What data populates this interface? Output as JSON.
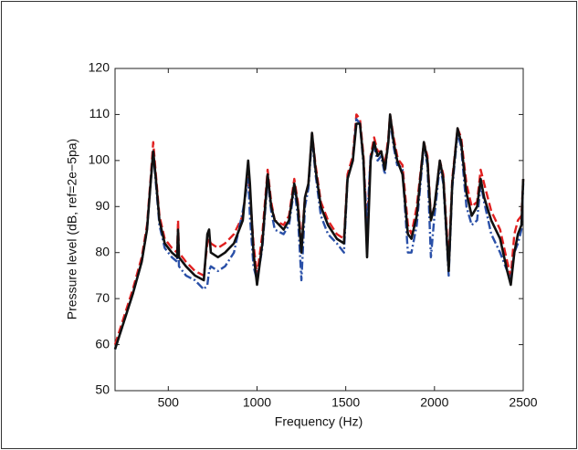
{
  "chart_data": {
    "type": "line",
    "xlabel": "Frequency (Hz)",
    "ylabel": "Pressure level (dB, ref=2e−5pa)",
    "xlim": [
      200,
      2500
    ],
    "xticks": [
      500,
      1000,
      1500,
      2000,
      2500
    ],
    "ylim": [
      50,
      120
    ],
    "yticks": [
      50,
      60,
      70,
      80,
      90,
      100,
      110,
      120
    ],
    "x": [
      200,
      250,
      300,
      350,
      380,
      400,
      415,
      430,
      450,
      480,
      520,
      550,
      555,
      560,
      600,
      650,
      700,
      720,
      730,
      740,
      780,
      820,
      870,
      920,
      950,
      960,
      980,
      1000,
      1030,
      1060,
      1080,
      1100,
      1150,
      1180,
      1210,
      1230,
      1250,
      1270,
      1290,
      1310,
      1330,
      1360,
      1400,
      1450,
      1490,
      1510,
      1540,
      1560,
      1580,
      1600,
      1620,
      1640,
      1660,
      1680,
      1700,
      1720,
      1740,
      1750,
      1770,
      1790,
      1800,
      1820,
      1850,
      1870,
      1900,
      1940,
      1960,
      1980,
      2000,
      2030,
      2050,
      2080,
      2100,
      2130,
      2150,
      2180,
      2210,
      2240,
      2260,
      2280,
      2320,
      2370,
      2410,
      2430,
      2450,
      2470,
      2490,
      2500
    ],
    "series": [
      {
        "color": "#e02020",
        "dash": "dashed",
        "values": [
          60,
          66,
          72,
          79,
          86,
          96,
          104,
          97,
          88,
          83,
          81,
          80,
          87,
          80,
          78,
          76,
          75,
          82,
          83,
          82,
          81,
          82,
          84,
          88,
          98,
          93,
          82,
          75,
          84,
          98,
          91,
          87,
          86,
          88,
          96,
          91,
          82,
          92,
          95,
          106,
          99,
          91,
          87,
          84,
          83,
          97,
          101,
          110,
          109,
          101,
          85,
          101,
          105,
          102,
          102,
          99,
          105,
          110,
          105,
          101,
          100,
          99,
          86,
          84,
          90,
          104,
          101,
          88,
          90,
          100,
          97,
          78,
          96,
          107,
          105,
          95,
          90,
          91,
          98,
          95,
          89,
          85,
          78,
          75,
          84,
          87,
          88,
          96
        ]
      },
      {
        "color": "#2a50a8",
        "dash": "dashdot",
        "values": [
          59,
          65,
          71,
          78,
          85,
          95,
          102,
          95,
          86,
          81,
          79,
          78,
          84,
          77,
          75,
          74,
          72,
          73,
          76,
          77,
          76,
          77,
          80,
          89,
          96,
          88,
          77,
          74,
          81,
          96,
          89,
          85,
          84,
          86,
          94,
          88,
          74,
          90,
          94,
          105,
          97,
          88,
          84,
          82,
          80,
          96,
          100,
          109,
          108,
          99,
          86,
          101,
          103,
          100,
          101,
          97,
          104,
          109,
          103,
          99,
          99,
          98,
          80,
          80,
          86,
          103,
          99,
          79,
          88,
          99,
          95,
          75,
          94,
          106,
          103,
          90,
          86,
          87,
          95,
          91,
          84,
          80,
          76,
          74,
          80,
          82,
          85,
          95
        ]
      },
      {
        "color": "#111111",
        "dash": "solid",
        "values": [
          59,
          65,
          71,
          78,
          85,
          95,
          102,
          96,
          87,
          82,
          80,
          79,
          85,
          79,
          77,
          75,
          74,
          84,
          85,
          80,
          79,
          80,
          82,
          87,
          100,
          95,
          80,
          73,
          82,
          97,
          90,
          87,
          85,
          87,
          95,
          90,
          80,
          92,
          95,
          106,
          98,
          90,
          86,
          83,
          82,
          96,
          100,
          108,
          108,
          100,
          79,
          100,
          104,
          101,
          102,
          98,
          104,
          110,
          104,
          100,
          99,
          97,
          84,
          83,
          88,
          104,
          100,
          87,
          90,
          100,
          96,
          76,
          95,
          107,
          104,
          93,
          88,
          90,
          96,
          92,
          87,
          83,
          76,
          73,
          80,
          84,
          86,
          96
        ]
      }
    ]
  }
}
